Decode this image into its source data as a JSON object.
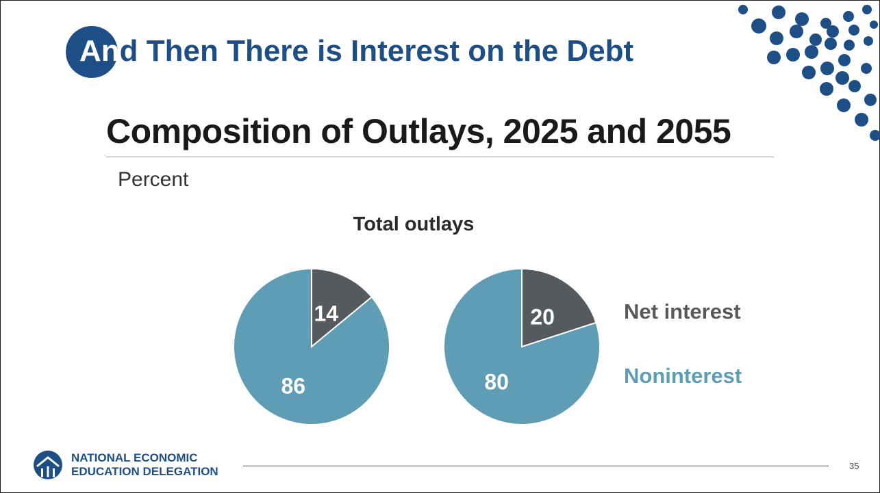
{
  "slide": {
    "title_badge_part": "An",
    "title_rest": "d Then There is Interest on the Debt",
    "page_number": "35",
    "logo": {
      "line1": "NATIONAL ECONOMIC",
      "line2": "EDUCATION DELEGATION"
    }
  },
  "chart_data": {
    "type": "pie",
    "title": "Composition of Outlays, 2025 and 2055",
    "units": "Percent",
    "subtitle": "Total outlays",
    "legend": [
      {
        "name": "Net interest",
        "color": "#555a5e"
      },
      {
        "name": "Noninterest",
        "color": "#5e9db4"
      }
    ],
    "legend_placement": "right",
    "pies": [
      {
        "year": "2025",
        "slices": [
          {
            "name": "Net interest",
            "value": 14,
            "label": "14"
          },
          {
            "name": "Noninterest",
            "value": 86,
            "label": "86"
          }
        ]
      },
      {
        "year": "2055",
        "slices": [
          {
            "name": "Net interest",
            "value": 20,
            "label": "20"
          },
          {
            "name": "Noninterest",
            "value": 80,
            "label": "80"
          }
        ]
      }
    ]
  },
  "colors": {
    "brand": "#1d4f86",
    "rule": "#9a9a9a"
  }
}
